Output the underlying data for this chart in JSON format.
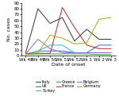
{
  "x_labels": [
    "Wk 48",
    "Wk 49",
    "Wk 50",
    "Wk 51",
    "Wk 52",
    "Wk 1",
    "Wk 2",
    "Wk 3"
  ],
  "series": {
    "Italy": [
      5,
      80,
      55,
      65,
      25,
      45,
      28,
      28
    ],
    "UK": [
      2,
      8,
      8,
      8,
      5,
      5,
      18,
      18
    ],
    "Turkey": [
      2,
      8,
      18,
      18,
      5,
      5,
      5,
      5
    ],
    "Greece": [
      2,
      3,
      3,
      3,
      3,
      3,
      2,
      2
    ],
    "France": [
      4,
      4,
      4,
      82,
      48,
      18,
      12,
      12
    ],
    "Belgium": [
      3,
      28,
      12,
      5,
      5,
      5,
      5,
      5
    ],
    "Germany": [
      2,
      5,
      35,
      30,
      20,
      22,
      62,
      65
    ]
  },
  "colors": {
    "Italy": "#333333",
    "UK": "#3366cc",
    "Turkey": "#33bbcc",
    "Greece": "#339933",
    "France": "#cc2222",
    "Belgium": "#9966cc",
    "Germany": "#aaaa00"
  },
  "ylabel": "No. cases",
  "xlabel": "Date of onset",
  "ylim": [
    0,
    90
  ],
  "yticks": [
    0,
    10,
    20,
    30,
    40,
    50,
    60,
    70,
    80,
    90
  ],
  "axis_fontsize": 4.5,
  "tick_fontsize": 4.0,
  "legend_fontsize": 3.5,
  "linewidth": 0.7,
  "background_color": "#ffffff"
}
